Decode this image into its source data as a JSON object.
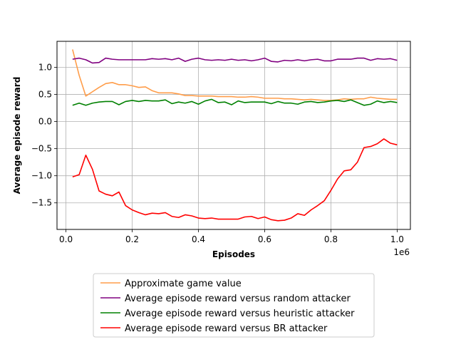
{
  "chart_data": {
    "type": "line",
    "xlabel": "Episodes",
    "ylabel": "Average episode reward",
    "x_offset_text": "1e6",
    "x_ticks": [
      0.0,
      0.2,
      0.4,
      0.6,
      0.8,
      1.0
    ],
    "x_tick_labels": [
      "0.0",
      "0.2",
      "0.4",
      "0.6",
      "0.8",
      "1.0"
    ],
    "y_ticks": [
      1.0,
      0.5,
      0.0,
      -0.5,
      -1.0,
      -1.5
    ],
    "y_tick_labels": [
      "1.0",
      "0.5",
      "0.0",
      "−0.5",
      "−1.0",
      "−1.5"
    ],
    "xlim": [
      -0.027,
      1.04
    ],
    "ylim": [
      -1.99,
      1.48
    ],
    "grid": true,
    "legend_position": "below",
    "x": [
      0.02,
      0.04,
      0.06,
      0.08,
      0.1,
      0.12,
      0.14,
      0.16,
      0.18,
      0.2,
      0.22,
      0.24,
      0.26,
      0.28,
      0.3,
      0.32,
      0.34,
      0.36,
      0.38,
      0.4,
      0.42,
      0.44,
      0.46,
      0.48,
      0.5,
      0.52,
      0.54,
      0.56,
      0.58,
      0.6,
      0.62,
      0.64,
      0.66,
      0.68,
      0.7,
      0.72,
      0.74,
      0.76,
      0.78,
      0.8,
      0.82,
      0.84,
      0.86,
      0.88,
      0.9,
      0.92,
      0.94,
      0.96,
      0.98,
      1.0
    ],
    "series": [
      {
        "name": "Approximate game value",
        "color": "#ff9d4a",
        "values": [
          1.33,
          0.85,
          0.47,
          0.55,
          0.63,
          0.7,
          0.72,
          0.68,
          0.68,
          0.66,
          0.63,
          0.64,
          0.57,
          0.53,
          0.53,
          0.53,
          0.51,
          0.48,
          0.48,
          0.47,
          0.47,
          0.47,
          0.46,
          0.46,
          0.46,
          0.45,
          0.45,
          0.46,
          0.45,
          0.43,
          0.43,
          0.43,
          0.42,
          0.42,
          0.41,
          0.4,
          0.41,
          0.4,
          0.39,
          0.39,
          0.4,
          0.42,
          0.41,
          0.42,
          0.42,
          0.45,
          0.43,
          0.42,
          0.41,
          0.41
        ]
      },
      {
        "name": "Average episode reward versus random attacker",
        "color": "#800080",
        "values": [
          1.15,
          1.17,
          1.14,
          1.08,
          1.09,
          1.17,
          1.15,
          1.14,
          1.14,
          1.14,
          1.14,
          1.14,
          1.16,
          1.15,
          1.16,
          1.14,
          1.17,
          1.11,
          1.15,
          1.17,
          1.14,
          1.13,
          1.14,
          1.13,
          1.15,
          1.13,
          1.14,
          1.12,
          1.14,
          1.17,
          1.11,
          1.1,
          1.13,
          1.12,
          1.14,
          1.12,
          1.14,
          1.15,
          1.12,
          1.12,
          1.15,
          1.15,
          1.15,
          1.17,
          1.17,
          1.13,
          1.16,
          1.15,
          1.16,
          1.13
        ]
      },
      {
        "name": "Average episode reward versus heuristic attacker",
        "color": "#008000",
        "values": [
          0.3,
          0.34,
          0.3,
          0.34,
          0.36,
          0.37,
          0.37,
          0.31,
          0.37,
          0.39,
          0.37,
          0.39,
          0.38,
          0.38,
          0.4,
          0.33,
          0.36,
          0.34,
          0.37,
          0.32,
          0.38,
          0.41,
          0.35,
          0.36,
          0.31,
          0.38,
          0.35,
          0.36,
          0.36,
          0.36,
          0.33,
          0.37,
          0.34,
          0.34,
          0.32,
          0.36,
          0.37,
          0.35,
          0.36,
          0.38,
          0.39,
          0.37,
          0.4,
          0.35,
          0.3,
          0.32,
          0.38,
          0.35,
          0.37,
          0.35
        ]
      },
      {
        "name": "Average episode reward versus BR attacker",
        "color": "#ff0000",
        "values": [
          -1.02,
          -0.98,
          -0.62,
          -0.88,
          -1.28,
          -1.34,
          -1.37,
          -1.3,
          -1.55,
          -1.63,
          -1.68,
          -1.72,
          -1.69,
          -1.7,
          -1.68,
          -1.75,
          -1.77,
          -1.72,
          -1.74,
          -1.78,
          -1.79,
          -1.78,
          -1.8,
          -1.8,
          -1.8,
          -1.8,
          -1.76,
          -1.75,
          -1.79,
          -1.76,
          -1.81,
          -1.83,
          -1.82,
          -1.78,
          -1.7,
          -1.73,
          -1.63,
          -1.55,
          -1.46,
          -1.27,
          -1.06,
          -0.91,
          -0.89,
          -0.75,
          -0.48,
          -0.46,
          -0.41,
          -0.32,
          -0.4,
          -0.43
        ]
      }
    ]
  }
}
